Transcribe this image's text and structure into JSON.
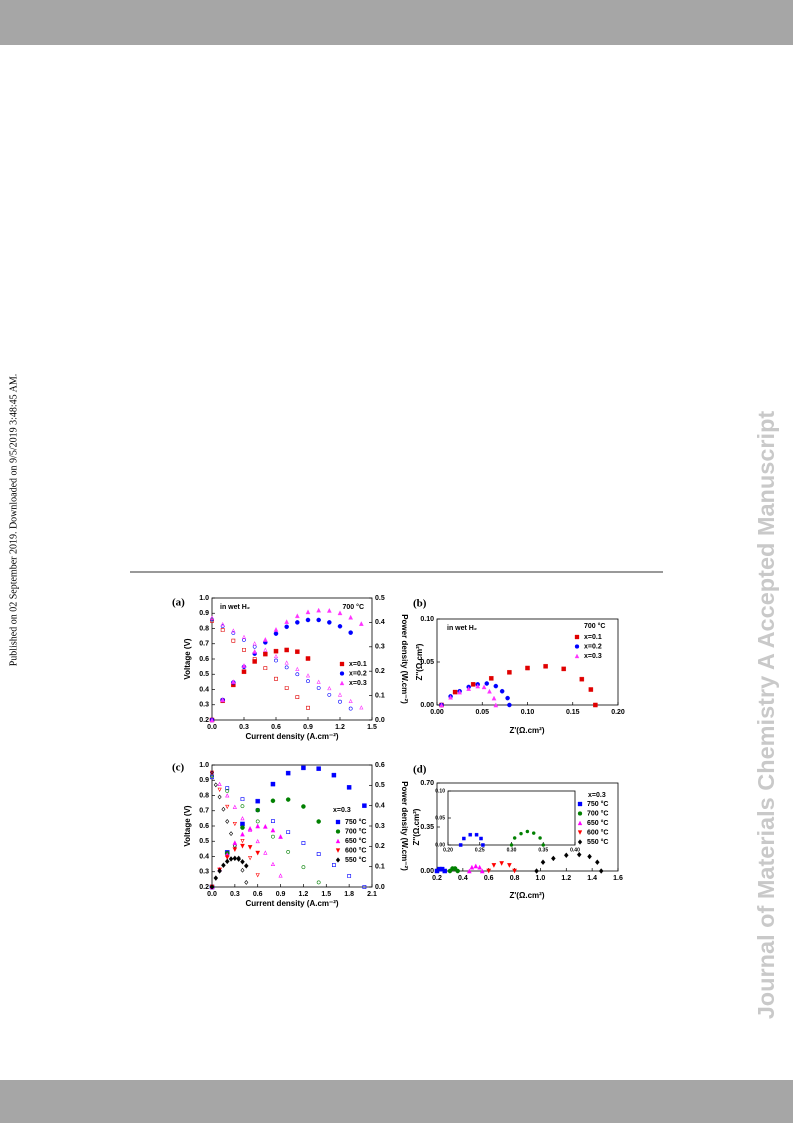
{
  "page": {
    "side_note": "Published on 02 September 2019. Downloaded on 9/5/2019 3:48:45 AM.",
    "watermark": "Journal of Materials Chemistry A Accepted Manuscript"
  },
  "chart_data": [
    {
      "type": "scatter",
      "panel_label": "(a)",
      "xlabel": "Current density (A.cm⁻²)",
      "ylabel": "Voltage (V)",
      "y2label": "Power density (W.cm⁻²)",
      "annotations": [
        "in wet H₂",
        "700 °C"
      ],
      "xlim": [
        0,
        1.5
      ],
      "xticks": [
        {
          "value": 0,
          "label": "0.0"
        },
        0.3,
        0.6,
        0.9,
        1.2,
        {
          "value": 1.5,
          "label": "1.5"
        }
      ],
      "ylim": [
        0.2,
        1.0
      ],
      "yticks": [
        0.2,
        0.3,
        0.4,
        0.5,
        0.6,
        0.7,
        0.8,
        0.9,
        {
          "value": 1,
          "label": "1.0"
        }
      ],
      "y2lim": [
        0,
        0.5
      ],
      "y2ticks": [
        {
          "value": 0,
          "label": "0.0"
        },
        0.1,
        0.2,
        0.3,
        0.4,
        0.5
      ],
      "series": [
        {
          "color": "#e00000",
          "marker": "square",
          "hollow": true,
          "x": [
            0,
            0.1,
            0.2,
            0.3,
            0.4,
            0.5,
            0.6,
            0.7,
            0.8,
            0.9
          ],
          "values": [
            0.85,
            0.79,
            0.72,
            0.66,
            0.6,
            0.54,
            0.47,
            0.41,
            0.35,
            0.28
          ]
        },
        {
          "color": "#0000ff",
          "marker": "circle",
          "hollow": true,
          "x": [
            0,
            0.1,
            0.2,
            0.3,
            0.4,
            0.5,
            0.6,
            0.7,
            0.8,
            0.9,
            1.0,
            1.1,
            1.2,
            1.3
          ],
          "values": [
            0.86,
            0.815,
            0.77,
            0.725,
            0.68,
            0.635,
            0.59,
            0.545,
            0.5,
            0.455,
            0.41,
            0.365,
            0.32,
            0.275
          ]
        },
        {
          "color": "#ff33ff",
          "marker": "triangle",
          "hollow": true,
          "x": [
            0,
            0.1,
            0.2,
            0.3,
            0.4,
            0.5,
            0.6,
            0.7,
            0.8,
            0.9,
            1.0,
            1.1,
            1.2,
            1.3,
            1.4
          ],
          "values": [
            0.87,
            0.828,
            0.786,
            0.744,
            0.702,
            0.66,
            0.618,
            0.576,
            0.534,
            0.492,
            0.45,
            0.408,
            0.366,
            0.324,
            0.282
          ]
        },
        {
          "name": "x=0.1",
          "color": "#e00000",
          "marker": "square",
          "axis": "y2",
          "x": [
            0,
            0.1,
            0.2,
            0.3,
            0.4,
            0.5,
            0.6,
            0.7,
            0.8,
            0.9
          ],
          "values": [
            0,
            0.079,
            0.144,
            0.198,
            0.24,
            0.27,
            0.282,
            0.287,
            0.28,
            0.252
          ]
        },
        {
          "name": "x=0.2",
          "color": "#0000ff",
          "marker": "circle",
          "axis": "y2",
          "x": [
            0,
            0.1,
            0.2,
            0.3,
            0.4,
            0.5,
            0.6,
            0.7,
            0.8,
            0.9,
            1.0,
            1.1,
            1.2,
            1.3
          ],
          "values": [
            0,
            0.082,
            0.154,
            0.218,
            0.272,
            0.318,
            0.354,
            0.382,
            0.4,
            0.41,
            0.41,
            0.4,
            0.384,
            0.358
          ]
        },
        {
          "name": "x=0.3",
          "color": "#ff33ff",
          "marker": "triangle",
          "axis": "y2",
          "x": [
            0,
            0.1,
            0.2,
            0.3,
            0.4,
            0.5,
            0.6,
            0.7,
            0.8,
            0.9,
            1.0,
            1.1,
            1.2,
            1.3,
            1.4
          ],
          "values": [
            0,
            0.083,
            0.157,
            0.223,
            0.281,
            0.33,
            0.371,
            0.403,
            0.427,
            0.443,
            0.45,
            0.449,
            0.439,
            0.421,
            0.395
          ]
        }
      ]
    },
    {
      "type": "scatter",
      "panel_label": "(b)",
      "xlabel": "Z'(Ω.cm²)",
      "ylabel": "Z''(Ω.cm²)",
      "annotations": [
        "in wet H₂"
      ],
      "legend_title": "700 °C",
      "xlim": [
        0,
        0.2
      ],
      "xticks": [
        {
          "value": 0,
          "label": "0.00"
        },
        0.05,
        {
          "value": 0.1,
          "label": "0.10"
        },
        0.15,
        {
          "value": 0.2,
          "label": "0.20"
        }
      ],
      "ylim": [
        0,
        0.1
      ],
      "yticks": [
        {
          "value": 0,
          "label": "0.00"
        },
        0.05,
        {
          "value": 0.1,
          "label": "0.10"
        }
      ],
      "series": [
        {
          "name": "x=0.1",
          "color": "#e00000",
          "marker": "square",
          "x": [
            0.005,
            0.02,
            0.04,
            0.06,
            0.08,
            0.1,
            0.12,
            0.14,
            0.16,
            0.17,
            0.175
          ],
          "values": [
            0,
            0.015,
            0.024,
            0.031,
            0.038,
            0.043,
            0.045,
            0.042,
            0.03,
            0.018,
            0
          ]
        },
        {
          "name": "x=0.2",
          "color": "#0000ff",
          "marker": "circle",
          "x": [
            0.005,
            0.015,
            0.025,
            0.035,
            0.045,
            0.055,
            0.065,
            0.072,
            0.078,
            0.08
          ],
          "values": [
            0,
            0.01,
            0.016,
            0.021,
            0.024,
            0.025,
            0.022,
            0.016,
            0.008,
            0
          ]
        },
        {
          "name": "x=0.3",
          "color": "#ff33ff",
          "marker": "triangle",
          "x": [
            0.005,
            0.015,
            0.025,
            0.035,
            0.045,
            0.052,
            0.058,
            0.063,
            0.065
          ],
          "values": [
            0,
            0.009,
            0.015,
            0.019,
            0.022,
            0.021,
            0.016,
            0.008,
            0
          ]
        }
      ]
    },
    {
      "type": "scatter",
      "panel_label": "(c)",
      "xlabel": "Current density (A.cm⁻²)",
      "ylabel": "Voltage (V)",
      "y2label": "Power density (W.cm⁻²)",
      "legend_title": "x=0.3",
      "xlim": [
        0,
        2.1
      ],
      "xticks": [
        {
          "value": 0,
          "label": "0.0"
        },
        0.3,
        0.6,
        0.9,
        1.2,
        1.5,
        1.8,
        2.1
      ],
      "ylim": [
        0.2,
        1.0
      ],
      "yticks": [
        0.2,
        0.3,
        0.4,
        0.5,
        0.6,
        0.7,
        0.8,
        0.9,
        {
          "value": 1,
          "label": "1.0"
        }
      ],
      "y2lim": [
        0,
        0.6
      ],
      "y2ticks": [
        {
          "value": 0,
          "label": "0.0"
        },
        0.1,
        0.2,
        0.3,
        0.4,
        0.5,
        0.6
      ],
      "series": [
        {
          "color": "#0000ff",
          "marker": "square",
          "hollow": true,
          "x": [
            0,
            0.2,
            0.4,
            0.6,
            0.8,
            1.0,
            1.2,
            1.4,
            1.6,
            1.8,
            2.0
          ],
          "values": [
            0.92,
            0.848,
            0.776,
            0.704,
            0.632,
            0.56,
            0.488,
            0.416,
            0.344,
            0.272,
            0.2
          ]
        },
        {
          "color": "#008000",
          "marker": "circle",
          "hollow": true,
          "x": [
            0,
            0.2,
            0.4,
            0.6,
            0.8,
            1.0,
            1.2,
            1.4
          ],
          "values": [
            0.93,
            0.83,
            0.73,
            0.63,
            0.53,
            0.43,
            0.33,
            0.23
          ]
        },
        {
          "color": "#ff00ff",
          "marker": "triangle",
          "hollow": true,
          "x": [
            0,
            0.1,
            0.2,
            0.3,
            0.4,
            0.5,
            0.6,
            0.7,
            0.8,
            0.9
          ],
          "values": [
            0.95,
            0.875,
            0.8,
            0.725,
            0.65,
            0.575,
            0.5,
            0.425,
            0.35,
            0.275
          ]
        },
        {
          "color": "#ff0000",
          "marker": "triangle-down",
          "hollow": true,
          "x": [
            0,
            0.1,
            0.2,
            0.3,
            0.4,
            0.5,
            0.6
          ],
          "values": [
            0.95,
            0.838,
            0.726,
            0.614,
            0.502,
            0.39,
            0.278
          ]
        },
        {
          "color": "#000000",
          "marker": "diamond",
          "hollow": true,
          "x": [
            0,
            0.05,
            0.1,
            0.15,
            0.2,
            0.25,
            0.3,
            0.35,
            0.4,
            0.45
          ],
          "values": [
            0.95,
            0.87,
            0.79,
            0.71,
            0.63,
            0.55,
            0.47,
            0.39,
            0.31,
            0.23
          ]
        },
        {
          "name": "750 °C",
          "color": "#0000ff",
          "marker": "square",
          "axis": "y2",
          "x": [
            0,
            0.2,
            0.4,
            0.6,
            0.8,
            1.0,
            1.2,
            1.4,
            1.6,
            1.8,
            2.0
          ],
          "values": [
            0,
            0.17,
            0.31,
            0.422,
            0.506,
            0.56,
            0.586,
            0.582,
            0.55,
            0.49,
            0.4
          ]
        },
        {
          "name": "700 °C",
          "color": "#008000",
          "marker": "circle",
          "axis": "y2",
          "x": [
            0,
            0.2,
            0.4,
            0.6,
            0.8,
            1.0,
            1.2,
            1.4
          ],
          "values": [
            0,
            0.166,
            0.292,
            0.378,
            0.424,
            0.43,
            0.396,
            0.322
          ]
        },
        {
          "name": "650 °C",
          "color": "#ff00ff",
          "marker": "triangle",
          "axis": "y2",
          "x": [
            0,
            0.1,
            0.2,
            0.3,
            0.4,
            0.5,
            0.6,
            0.7,
            0.8,
            0.9
          ],
          "values": [
            0,
            0.088,
            0.16,
            0.218,
            0.26,
            0.288,
            0.3,
            0.298,
            0.28,
            0.248
          ]
        },
        {
          "name": "600 °C",
          "color": "#ff0000",
          "marker": "triangle-down",
          "axis": "y2",
          "x": [
            0,
            0.1,
            0.2,
            0.3,
            0.4,
            0.5,
            0.6
          ],
          "values": [
            0,
            0.084,
            0.145,
            0.184,
            0.201,
            0.195,
            0.167
          ]
        },
        {
          "name": "550 °C",
          "color": "#000000",
          "marker": "diamond",
          "axis": "y2",
          "x": [
            0,
            0.05,
            0.1,
            0.15,
            0.2,
            0.25,
            0.3,
            0.35,
            0.4,
            0.45
          ],
          "values": [
            0,
            0.044,
            0.079,
            0.107,
            0.126,
            0.138,
            0.141,
            0.137,
            0.124,
            0.104
          ]
        }
      ]
    },
    {
      "type": "scatter",
      "panel_label": "(d)",
      "xlabel": "Z'(Ω.cm²)",
      "ylabel": "Z''(Ω.cm²)",
      "legend_title": "x=0.3",
      "xlim": [
        0.2,
        1.6
      ],
      "xticks": [
        0.2,
        0.4,
        0.6,
        0.8,
        {
          "value": 1,
          "label": "1.0"
        },
        1.2,
        1.4,
        1.6
      ],
      "ylim": [
        0,
        0.7
      ],
      "yticks": [
        {
          "value": 0,
          "label": "0.00"
        },
        0.35,
        {
          "value": 0.7,
          "label": "0.70"
        }
      ],
      "series": [
        {
          "name": "750 °C",
          "color": "#0000ff",
          "marker": "square",
          "x": [
            0.2,
            0.22,
            0.24,
            0.26
          ],
          "values": [
            0,
            0.015,
            0.015,
            0
          ]
        },
        {
          "name": "700 °C",
          "color": "#008000",
          "marker": "circle",
          "x": [
            0.3,
            0.32,
            0.34,
            0.36
          ],
          "values": [
            0,
            0.02,
            0.02,
            0
          ]
        },
        {
          "name": "650 °C",
          "color": "#ff00ff",
          "marker": "triangle",
          "x": [
            0.45,
            0.47,
            0.5,
            0.53,
            0.55
          ],
          "values": [
            0,
            0.03,
            0.04,
            0.03,
            0
          ]
        },
        {
          "name": "600 °C",
          "color": "#ff0000",
          "marker": "triangle-down",
          "x": [
            0.6,
            0.64,
            0.7,
            0.76,
            0.8
          ],
          "values": [
            0,
            0.045,
            0.06,
            0.045,
            0
          ]
        },
        {
          "name": "550 °C",
          "color": "#000000",
          "marker": "diamond",
          "x": [
            0.97,
            1.02,
            1.1,
            1.2,
            1.3,
            1.38,
            1.44,
            1.47
          ],
          "values": [
            0,
            0.07,
            0.1,
            0.125,
            0.13,
            0.115,
            0.07,
            0
          ]
        }
      ],
      "inset": {
        "xlim": [
          0.2,
          0.4
        ],
        "xticks": [
          {
            "value": 0.2,
            "label": "0.20"
          },
          0.25,
          {
            "value": 0.3,
            "label": "0.30"
          },
          0.35,
          {
            "value": 0.4,
            "label": "0.40"
          }
        ],
        "ylim": [
          0,
          0.1
        ],
        "yticks": [
          {
            "value": 0,
            "label": "0.00"
          },
          0.05,
          {
            "value": 0.1,
            "label": "0.10"
          }
        ],
        "series": [
          {
            "color": "#0000ff",
            "marker": "square",
            "x": [
              0.22,
              0.225,
              0.235,
              0.245,
              0.252,
              0.255
            ],
            "values": [
              0,
              0.012,
              0.019,
              0.019,
              0.012,
              0
            ]
          },
          {
            "color": "#008000",
            "marker": "circle",
            "x": [
              0.3,
              0.305,
              0.315,
              0.325,
              0.335,
              0.345,
              0.35
            ],
            "values": [
              0,
              0.013,
              0.021,
              0.025,
              0.022,
              0.013,
              0
            ]
          }
        ]
      }
    }
  ]
}
